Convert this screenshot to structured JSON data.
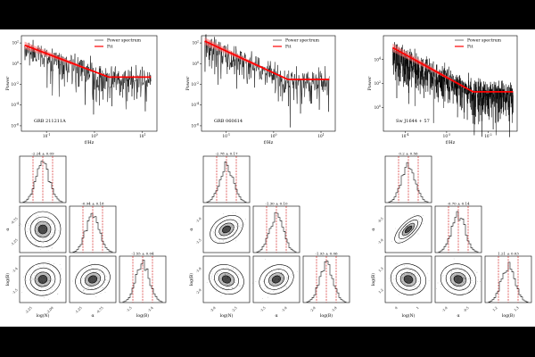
{
  "figure": {
    "colors": {
      "background": "#ffffff",
      "data": "#000000",
      "fit": "#ff0000",
      "fit_band": "#ff6b6b",
      "credible": "#cc0000"
    },
    "legend_labels": [
      "Power spectrum",
      "Fit"
    ]
  },
  "chart_data": [
    {
      "type": "line",
      "panel": "power-spectrum",
      "label": "GRB 211211A",
      "xlabel": "f/Hz",
      "ylabel": "Power",
      "xscale": "log",
      "yscale": "log",
      "xlim": [
        0.03,
        20
      ],
      "ylim": [
        3e-07,
        500
      ],
      "xticks": [
        "10^-1",
        "10^0",
        "10^1"
      ],
      "yticks": [
        "10^-6",
        "10^-4",
        "10^-2",
        "10^0",
        "10^2"
      ],
      "series": [
        {
          "name": "Power spectrum",
          "x_range": [
            0.035,
            15
          ],
          "y_level_at_start": 30,
          "y_level_at_end": 0.05
        },
        {
          "name": "Fit",
          "x": [
            0.035,
            15
          ],
          "y": [
            60,
            0.05
          ]
        }
      ],
      "legend": "top-right"
    },
    {
      "type": "line",
      "panel": "power-spectrum",
      "label": "GRB 060614",
      "xlabel": "f/Hz",
      "ylabel": "Power",
      "xscale": "log",
      "yscale": "log",
      "xlim": [
        0.03,
        20
      ],
      "ylim": [
        3e-07,
        500
      ],
      "xticks": [
        "10^-1",
        "10^0",
        "10^1"
      ],
      "yticks": [
        "10^-6",
        "10^-4",
        "10^-2",
        "10^0",
        "10^2"
      ],
      "series": [
        {
          "name": "Power spectrum",
          "x_range": [
            0.035,
            15
          ],
          "y_level_at_start": 100,
          "y_level_at_end": 0.03
        },
        {
          "name": "Fit",
          "x": [
            0.035,
            15
          ],
          "y": [
            150,
            0.03
          ]
        }
      ],
      "legend": "top-right"
    },
    {
      "type": "line",
      "panel": "power-spectrum",
      "label": "Sw J1644 + 57",
      "xlabel": "f/Hz",
      "ylabel": "Power",
      "xscale": "log",
      "yscale": "log",
      "xlim": [
        3e-05,
        0.05
      ],
      "ylim": [
        0.01,
        1000000
      ],
      "xticks": [
        "10^-4",
        "10^-3",
        "10^-2"
      ],
      "yticks": [
        "10^0",
        "10^2",
        "10^4"
      ],
      "series": [
        {
          "name": "Power spectrum",
          "x_range": [
            5e-05,
            0.04
          ],
          "y_level_at_start": 30000,
          "y_level_at_end": 20
        },
        {
          "name": "Fit",
          "x": [
            5e-05,
            0.04
          ],
          "y": [
            100000,
            20
          ]
        }
      ],
      "legend": "top-right"
    },
    {
      "type": "corner",
      "label": "GRB 211211A",
      "parameters": [
        "log(N)",
        "α",
        "log(B)"
      ],
      "xlabels": [
        "log(N)",
        "α",
        "log(B)"
      ],
      "ylabels": [
        "α",
        "log(B)"
      ],
      "titles": [
        "-2.24 ± 0.09",
        "-0.94 ± 0.18",
        "-1.55 ± 0.04"
      ],
      "medians": [
        -2.24,
        -0.94,
        -1.55
      ],
      "sigmas": [
        0.09,
        0.18,
        0.04
      ],
      "correlations": [
        0.0,
        0.2,
        0.4
      ],
      "ticks": [
        [
          "-2.25",
          "-2.00"
        ],
        [
          "-1.25",
          "-0.75"
        ],
        [
          "-1.5",
          "-1.4"
        ]
      ]
    },
    {
      "type": "corner",
      "label": "GRB 060614",
      "parameters": [
        "log(N)",
        "α",
        "log(B)"
      ],
      "xlabels": [
        "log(N)",
        "α",
        "log(B)"
      ],
      "ylabels": [
        "α",
        "log(B)"
      ],
      "titles": [
        "-2.78 ± 0.17",
        "-1.30 ± 0.10",
        "-1.93 ± 0.06"
      ],
      "medians": [
        -2.78,
        -1.3,
        -1.93
      ],
      "sigmas": [
        0.17,
        0.1,
        0.06
      ],
      "correlations": [
        0.6,
        -0.4,
        0.45
      ],
      "ticks": [
        [
          "-3.0",
          "-2.5"
        ],
        [
          "-1.5",
          "-1.0"
        ],
        [
          "-2.0",
          "-1.9"
        ]
      ]
    },
    {
      "type": "corner",
      "label": "Sw J1644 + 57",
      "parameters": [
        "log(N)",
        "α",
        "log(B)"
      ],
      "xlabels": [
        "log(N)",
        "α",
        "log(B)"
      ],
      "ylabels": [
        "α",
        "log(B)"
      ],
      "titles": [
        "0.2 ± 0.56",
        "-0.70 ± 0.14",
        "1.21 ± 0.03"
      ],
      "medians": [
        0.2,
        -0.7,
        1.21
      ],
      "sigmas": [
        0.56,
        0.14,
        0.03
      ],
      "correlations": [
        0.92,
        -0.3,
        -0.3
      ],
      "ticks": [
        [
          "0",
          "1"
        ],
        [
          "-1.0",
          "-0.5"
        ],
        [
          "1.2",
          "1.3"
        ]
      ]
    }
  ]
}
